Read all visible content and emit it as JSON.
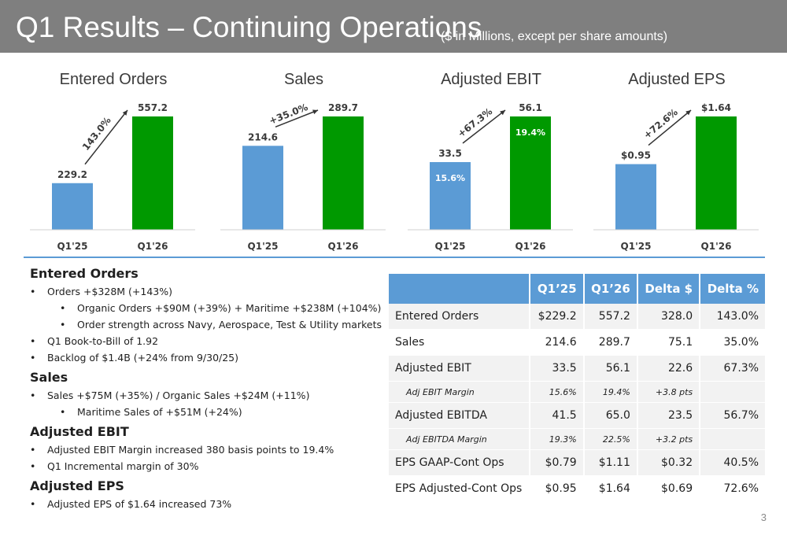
{
  "header": {
    "title": "Q1 Results – Continuing Operations",
    "subtitle": "($ in Millions, except per share amounts)"
  },
  "colors": {
    "header_bg": "#7f7f7f",
    "prior_bar": "#5b9bd5",
    "current_bar": "#009900",
    "table_header": "#5b9bd5"
  },
  "chart_data": [
    {
      "type": "bar",
      "title": "Entered Orders",
      "categories": [
        "Q1'25",
        "Q1'26"
      ],
      "values": [
        229.2,
        557.2
      ],
      "value_labels": [
        "229.2",
        "557.2"
      ],
      "growth_label": "143.0%",
      "inner_labels": [
        "",
        ""
      ],
      "ylim": [
        0,
        557.2
      ]
    },
    {
      "type": "bar",
      "title": "Sales",
      "categories": [
        "Q1'25",
        "Q1'26"
      ],
      "values": [
        214.6,
        289.7
      ],
      "value_labels": [
        "214.6",
        "289.7"
      ],
      "growth_label": "+35.0%",
      "inner_labels": [
        "",
        ""
      ],
      "ylim": [
        0,
        289.7
      ]
    },
    {
      "type": "bar",
      "title": "Adjusted EBIT",
      "categories": [
        "Q1'25",
        "Q1'26"
      ],
      "values": [
        33.5,
        56.1
      ],
      "value_labels": [
        "33.5",
        "56.1"
      ],
      "growth_label": "+67.3%",
      "inner_labels": [
        "15.6%",
        "19.4%"
      ],
      "ylim": [
        0,
        56.1
      ]
    },
    {
      "type": "bar",
      "title": "Adjusted EPS",
      "categories": [
        "Q1'25",
        "Q1'26"
      ],
      "values": [
        0.95,
        1.64
      ],
      "value_labels": [
        "$0.95",
        "$1.64"
      ],
      "growth_label": "+72.6%",
      "inner_labels": [
        "",
        ""
      ],
      "ylim": [
        0,
        1.64
      ]
    }
  ],
  "notes": [
    {
      "heading": "Entered Orders",
      "bullets": [
        {
          "level": 1,
          "text": "Orders +$328M (+143%)"
        },
        {
          "level": 2,
          "text": "Organic Orders +$90M (+39%) + Maritime +$238M (+104%)"
        },
        {
          "level": 2,
          "text": "Order strength across Navy, Aerospace, Test & Utility markets"
        },
        {
          "level": 1,
          "text": "Q1 Book-to-Bill of 1.92"
        },
        {
          "level": 1,
          "text": "Backlog of $1.4B (+24% from 9/30/25)"
        }
      ]
    },
    {
      "heading": "Sales",
      "bullets": [
        {
          "level": 1,
          "text": "Sales +$75M (+35%) / Organic Sales +$24M (+11%)"
        },
        {
          "level": 2,
          "text": "Maritime Sales of +$51M (+24%)"
        }
      ]
    },
    {
      "heading": "Adjusted EBIT",
      "bullets": [
        {
          "level": 1,
          "text": "Adjusted EBIT Margin increased 380 basis points to 19.4%"
        },
        {
          "level": 1,
          "text": "Q1 Incremental margin of 30%"
        }
      ]
    },
    {
      "heading": "Adjusted EPS",
      "bullets": [
        {
          "level": 1,
          "text": "Adjusted EPS of $1.64 increased 73%"
        }
      ]
    }
  ],
  "table": {
    "headers": [
      "",
      "Q1’25",
      "Q1’26",
      "Delta $",
      "Delta %"
    ],
    "rows": [
      {
        "sub": false,
        "cells": [
          "Entered Orders",
          "$229.2",
          "557.2",
          "328.0",
          "143.0%"
        ]
      },
      {
        "sub": false,
        "cells": [
          "Sales",
          "214.6",
          "289.7",
          "75.1",
          "35.0%"
        ]
      },
      {
        "sub": false,
        "cells": [
          "Adjusted EBIT",
          "33.5",
          "56.1",
          "22.6",
          "67.3%"
        ]
      },
      {
        "sub": true,
        "cells": [
          "Adj EBIT Margin",
          "15.6%",
          "19.4%",
          "+3.8 pts",
          ""
        ]
      },
      {
        "sub": false,
        "cells": [
          "Adjusted EBITDA",
          "41.5",
          "65.0",
          "23.5",
          "56.7%"
        ]
      },
      {
        "sub": true,
        "cells": [
          "Adj EBITDA Margin",
          "19.3%",
          "22.5%",
          "+3.2 pts",
          ""
        ]
      },
      {
        "sub": false,
        "cells": [
          "EPS GAAP-Cont Ops",
          "$0.79",
          "$1.11",
          "$0.32",
          "40.5%"
        ]
      },
      {
        "sub": false,
        "cells": [
          "EPS Adjusted-Cont Ops",
          "$0.95",
          "$1.64",
          "$0.69",
          "72.6%"
        ]
      }
    ]
  },
  "page_number": "3"
}
